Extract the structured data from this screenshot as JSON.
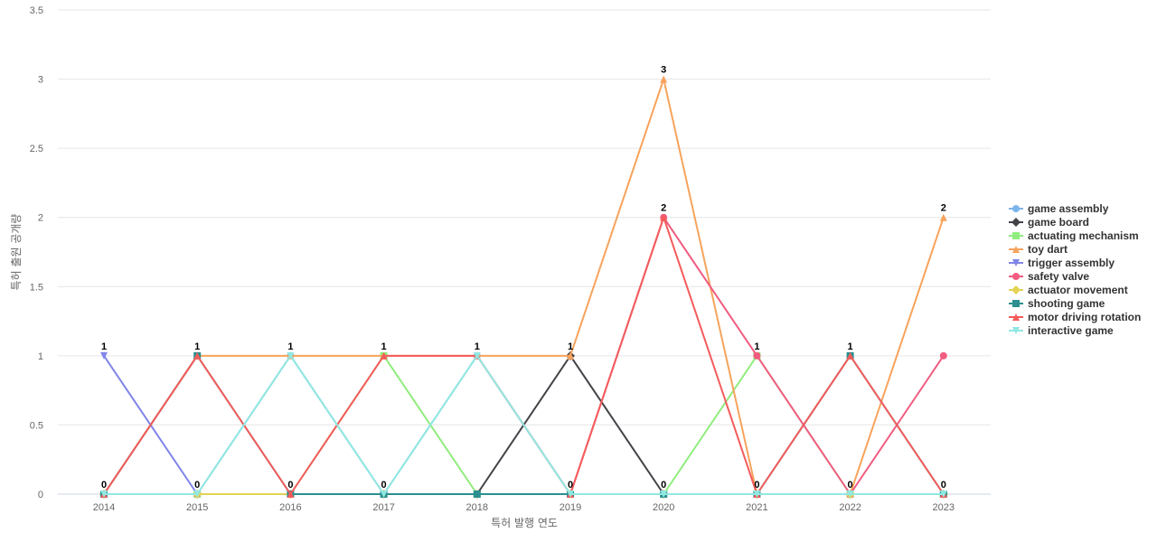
{
  "chart_data": {
    "type": "line",
    "xlabel": "특허 발행 연도",
    "ylabel": "특허 출원 공개량",
    "ylim": [
      0,
      3.5
    ],
    "yticks": [
      "0",
      "0.5",
      "1",
      "1.5",
      "2",
      "2.5",
      "3",
      "3.5"
    ],
    "categories": [
      "2014",
      "2015",
      "2016",
      "2017",
      "2018",
      "2019",
      "2020",
      "2021",
      "2022",
      "2023"
    ],
    "grid": true,
    "legend_position": "right",
    "series": [
      {
        "name": "game assembly",
        "color": "#7cb5ec",
        "marker": "circle",
        "values": [
          0,
          0,
          1,
          0,
          1,
          0,
          0,
          0,
          0,
          0
        ]
      },
      {
        "name": "game board",
        "color": "#434348",
        "marker": "diamond",
        "values": [
          0,
          0,
          0,
          0,
          0,
          1,
          0,
          0,
          0,
          0
        ]
      },
      {
        "name": "actuating mechanism",
        "color": "#90ed7d",
        "marker": "square",
        "values": [
          0,
          0,
          0,
          1,
          0,
          0,
          0,
          1,
          0,
          0
        ]
      },
      {
        "name": "toy dart",
        "color": "#f7a35c",
        "marker": "triangle",
        "values": [
          0,
          1,
          1,
          1,
          1,
          1,
          3,
          0,
          0,
          2
        ]
      },
      {
        "name": "trigger assembly",
        "color": "#8085e9",
        "marker": "triangle-down",
        "values": [
          1,
          0,
          0,
          0,
          0,
          0,
          0,
          0,
          0,
          0
        ]
      },
      {
        "name": "safety valve",
        "color": "#f15c80",
        "marker": "circle",
        "values": [
          0,
          0,
          0,
          0,
          0,
          0,
          2,
          1,
          0,
          1
        ]
      },
      {
        "name": "actuator movement",
        "color": "#e4d354",
        "marker": "diamond",
        "values": [
          0,
          0,
          0,
          0,
          0,
          0,
          0,
          0,
          0,
          0
        ]
      },
      {
        "name": "shooting game",
        "color": "#2b908f",
        "marker": "square",
        "values": [
          0,
          1,
          0,
          0,
          0,
          0,
          0,
          0,
          1,
          0
        ]
      },
      {
        "name": "motor driving rotation",
        "color": "#f45b5b",
        "marker": "triangle",
        "values": [
          0,
          1,
          0,
          1,
          1,
          0,
          2,
          0,
          1,
          0
        ]
      },
      {
        "name": "interactive game",
        "color": "#91e8e1",
        "marker": "triangle-down",
        "values": [
          0,
          0,
          1,
          0,
          1,
          0,
          0,
          0,
          0,
          0
        ]
      }
    ],
    "stack_labels": [
      "1",
      "1",
      "1",
      "1",
      "1",
      "1",
      "3",
      "1",
      "1",
      "2"
    ],
    "zero_labels": [
      "0",
      "0",
      "0",
      "0",
      "",
      "0",
      "0",
      "0",
      "0",
      "0"
    ],
    "two_labels": [
      "",
      "",
      "",
      "",
      "",
      "",
      "2",
      "",
      "",
      ""
    ]
  }
}
